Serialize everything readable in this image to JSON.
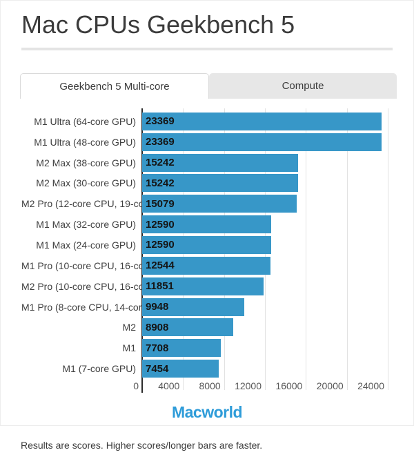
{
  "page": {
    "title": "Mac CPUs Geekbench 5",
    "caption": "Results are scores. Higher scores/longer bars are faster.",
    "logo_text": "Macworld"
  },
  "tabs": [
    {
      "label": "Geekbench 5 Multi-core",
      "active": true
    },
    {
      "label": "Compute",
      "active": false
    }
  ],
  "colors": {
    "bar": "#3797c8",
    "axis": "#2b2b2b",
    "gridline": "#e2e2e2",
    "logo": "#2e9cd9",
    "inactive_tab_bg": "#e7e7e7"
  },
  "chart_data": {
    "type": "bar",
    "orientation": "horizontal",
    "title": "Mac CPUs Geekbench 5",
    "active_series": "Geekbench 5 Multi-core",
    "categories": [
      "M1 Ultra (64-core GPU)",
      "M1 Ultra (48-core GPU)",
      "M2 Max (38-core GPU)",
      "M2 Max (30-core GPU)",
      "M2 Pro (12-core CPU, 19-co...",
      "M1 Max (32-core GPU)",
      "M1 Max (24-core GPU)",
      "M1 Pro (10-core CPU, 16-co...",
      "M2 Pro (10-core CPU, 16-co...",
      "M1 Pro (8-core CPU, 14-cor...",
      "M2",
      "M1",
      "M1 (7-core GPU)"
    ],
    "values": [
      23369,
      23369,
      15242,
      15242,
      15079,
      12590,
      12590,
      12544,
      11851,
      9948,
      8908,
      7708,
      7454
    ],
    "xlim": [
      0,
      24000
    ],
    "xticks": [
      0,
      4000,
      8000,
      12000,
      16000,
      20000,
      24000
    ],
    "xtick_labels": [
      "0",
      "4000",
      "8000",
      "12000",
      "16000",
      "20000",
      "24000"
    ],
    "grid": true,
    "value_labels": "inside-left"
  }
}
